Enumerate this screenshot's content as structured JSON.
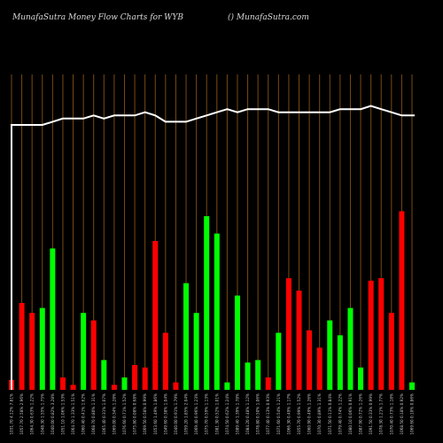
{
  "header": {
    "title": "MunafaSutra  Money Flow  Charts for WYB",
    "site": "() MunafaSutra.com"
  },
  "chart_data": {
    "type": "bar",
    "note": "Money flow bars (green = inflow day, red = outflow day) with white price line; no numeric y-axis printed",
    "ylim": [
      0,
      100
    ],
    "price_ylim": [
      0,
      100
    ],
    "categories": [
      "1031.70 4.12% 7.81%",
      "1057.70 2.58% 2.96%",
      "1064.30 0.63% 1.22%",
      "1048.30 1.55% 1.75%",
      "1040.00 0.82% 3.28%",
      "1051.10 1.06% 1.53%",
      "1064.70 1.33% 1.51%",
      "1060.40 0.41% 1.62%",
      "1068.70 0.80% 1.31%",
      "1065.40 0.31% 1.07%",
      "1069.00 0.34% 1.28%",
      "1076.60 0.71% 1.52%",
      "1075.80 0.08% 0.68%",
      "1069.50 0.58% 0.99%",
      "1053.60 1.49% 1.86%",
      "1049.60 0.38% 1.04%",
      "1040.00 0.91% 1.79%",
      "1059.20 1.85% 2.04%",
      "1069.40 0.96% 1.23%",
      "1075.70 0.59% 1.13%",
      "1081.30 0.52% 1.01%",
      "1074.50 0.62% 1.24%",
      "1089.40 1.39% 1.78%",
      "1084.20 0.48% 1.12%",
      "1078.80 0.50% 1.06%",
      "1077.40 0.13% 0.93%",
      "1071.60 0.54% 1.21%",
      "1066.30 0.49% 1.17%",
      "1055.70 0.99% 1.52%",
      "1060.90 0.49% 1.26%",
      "1070.30 0.89% 1.31%",
      "1071.50 0.11% 0.84%",
      "1079.40 0.74% 1.22%",
      "1080.10 0.06% 0.91%",
      "1087.90 0.72% 1.26%",
      "1091.50 0.33% 0.99%",
      "1078.30 1.21% 1.77%",
      "1070.40 0.73% 1.18%",
      "1068.50 0.18% 0.92%",
      "1069.60 0.10% 0.86%"
    ],
    "flow": [
      "red",
      "red",
      "red",
      "green",
      "green",
      "red",
      "red",
      "green",
      "red",
      "green",
      "red",
      "green",
      "red",
      "red",
      "red",
      "red",
      "red",
      "green",
      "green",
      "green",
      "green",
      "green",
      "green",
      "green",
      "green",
      "red",
      "green",
      "red",
      "red",
      "red",
      "red",
      "green",
      "green",
      "green",
      "green",
      "red",
      "red",
      "red",
      "red",
      "green"
    ],
    "values": [
      4,
      35,
      31,
      33,
      57,
      5,
      2,
      31,
      28,
      12,
      2,
      5,
      10,
      9,
      60,
      23,
      3,
      43,
      31,
      70,
      63,
      3,
      38,
      11,
      12,
      5,
      23,
      45,
      40,
      24,
      17,
      28,
      22,
      33,
      9,
      44,
      45,
      31,
      72,
      3
    ],
    "price": [
      84,
      84,
      84,
      84,
      85,
      86,
      86,
      86,
      87,
      86,
      87,
      87,
      87,
      88,
      87,
      85,
      85,
      85,
      86,
      87,
      88,
      89,
      88,
      89,
      89,
      89,
      88,
      88,
      88,
      88,
      88,
      88,
      89,
      89,
      89,
      90,
      89,
      88,
      87,
      87
    ]
  }
}
